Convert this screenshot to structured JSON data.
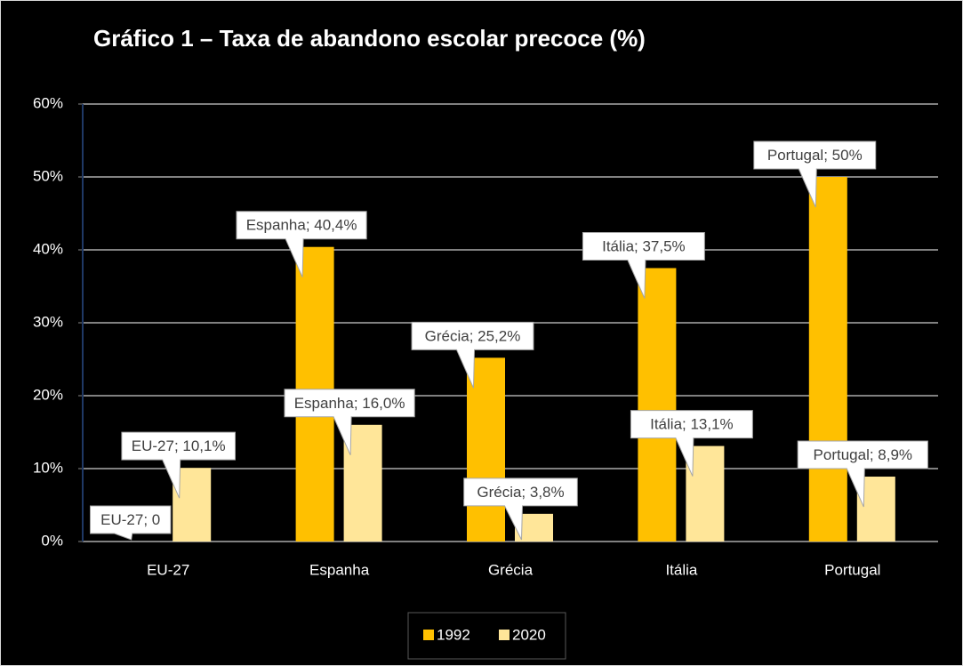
{
  "chart_data": {
    "type": "bar",
    "title": "Gráfico 1 – Taxa de abandono escolar precoce (%)",
    "categories": [
      "EU-27",
      "Espanha",
      "Grécia",
      "Itália",
      "Portugal"
    ],
    "series": [
      {
        "name": "1992",
        "color": "#ffc000",
        "values": [
          0,
          40.4,
          25.2,
          37.5,
          50
        ],
        "value_labels": [
          "EU-27; 0",
          "Espanha; 40,4%",
          "Grécia; 25,2%",
          "Itália; 37,5%",
          "Portugal; 50%"
        ]
      },
      {
        "name": "2020",
        "color": "#ffe699",
        "values": [
          10.1,
          16.0,
          3.8,
          13.1,
          8.9
        ],
        "value_labels": [
          "EU-27; 10,1%",
          "Espanha; 16,0%",
          "Grécia; 3,8%",
          "Itália; 13,1%",
          "Portugal; 8,9%"
        ]
      }
    ],
    "ylim": [
      0,
      60
    ],
    "yticks": [
      {
        "value": 0,
        "label": "0%"
      },
      {
        "value": 10,
        "label": "10%"
      },
      {
        "value": 20,
        "label": "20%"
      },
      {
        "value": 30,
        "label": "30%"
      },
      {
        "value": 40,
        "label": "40%"
      },
      {
        "value": 50,
        "label": "50%"
      },
      {
        "value": 60,
        "label": "60%"
      }
    ],
    "grid": true,
    "legend": "bottom"
  }
}
